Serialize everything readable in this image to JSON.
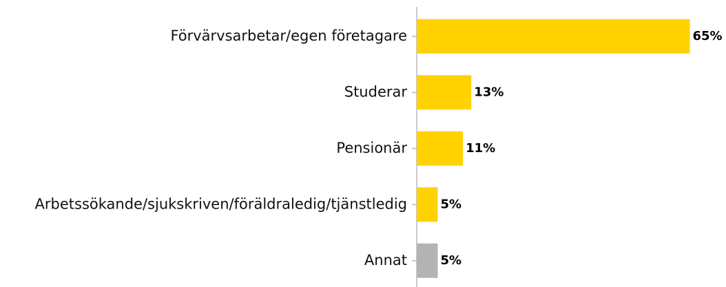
{
  "chart_data": {
    "type": "bar",
    "orientation": "horizontal",
    "categories": [
      "Förvärvsarbetar/egen företagare",
      "Studerar",
      "Pensionär",
      "Arbetssökande/sjukskriven/föräldraledig/tjänstledig",
      "Annat"
    ],
    "values": [
      65,
      13,
      11,
      5,
      5
    ],
    "value_labels": [
      "65%",
      "13%",
      "11%",
      "5%",
      "5%"
    ],
    "colors": [
      "#ffd200",
      "#ffd200",
      "#ffd200",
      "#ffd200",
      "#b3b3b3"
    ]
  }
}
